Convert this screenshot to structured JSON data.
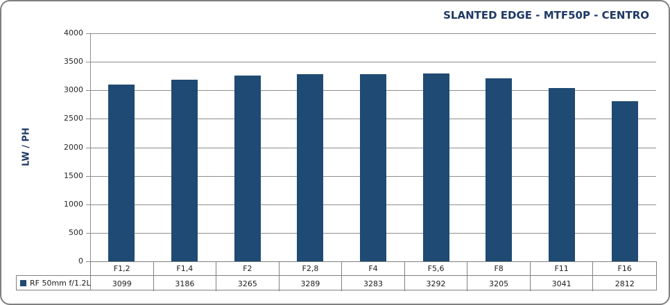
{
  "title": "SLANTED EDGE - MTF50P - CENTRO",
  "y_axis_title": "LW / PH",
  "legend": {
    "series_label": "RF 50mm f/1.2L"
  },
  "chart_data": {
    "type": "bar",
    "title": "SLANTED EDGE - MTF50P - CENTRO",
    "xlabel": "",
    "ylabel": "LW / PH",
    "categories": [
      "F1,2",
      "F1,4",
      "F2",
      "F2,8",
      "F4",
      "F5,6",
      "F8",
      "F11",
      "F16"
    ],
    "series": [
      {
        "name": "RF 50mm f/1.2L",
        "values": [
          3099,
          3186,
          3265,
          3289,
          3283,
          3292,
          3205,
          3041,
          2812
        ]
      }
    ],
    "ylim": [
      0,
      4000
    ],
    "ytick_step": 500,
    "grid": true,
    "legend_position": "bottom-table"
  },
  "colors": {
    "bar": "#1f4a73",
    "title_text": "#1f3864",
    "grid_line": "#8c8c8c",
    "table_border": "#7f7f7f",
    "tick_text": "#262626",
    "outer_border": "#7f7f7f",
    "background": "#ffffff"
  }
}
